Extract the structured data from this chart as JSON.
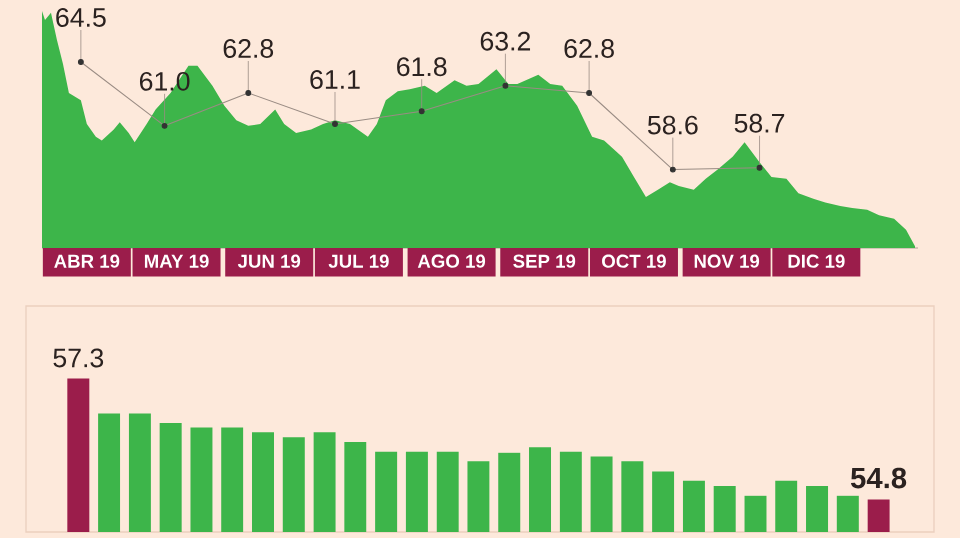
{
  "chart_data": [
    {
      "type": "area",
      "x": [
        "2019-04-01",
        "2019-04-02",
        "2019-04-04",
        "2019-04-06",
        "2019-04-08",
        "2019-04-10",
        "2019-04-14",
        "2019-04-16",
        "2019-04-19",
        "2019-04-21",
        "2019-04-25",
        "2019-04-27",
        "2019-04-30",
        "2019-05-02",
        "2019-05-06",
        "2019-05-09",
        "2019-05-14",
        "2019-05-20",
        "2019-05-23",
        "2019-05-28",
        "2019-06-01",
        "2019-06-05",
        "2019-06-09",
        "2019-06-13",
        "2019-06-18",
        "2019-06-21",
        "2019-06-25",
        "2019-06-30",
        "2019-07-04",
        "2019-07-08",
        "2019-07-13",
        "2019-07-19",
        "2019-07-22",
        "2019-07-25",
        "2019-07-29",
        "2019-08-02",
        "2019-08-07",
        "2019-08-11",
        "2019-08-17",
        "2019-08-21",
        "2019-08-25",
        "2019-08-31",
        "2019-09-04",
        "2019-09-07",
        "2019-09-14",
        "2019-09-18",
        "2019-09-22",
        "2019-09-27",
        "2019-10-02",
        "2019-10-06",
        "2019-10-12",
        "2019-10-16",
        "2019-10-20",
        "2019-10-24",
        "2019-10-28",
        "2019-10-31",
        "2019-11-05",
        "2019-11-09",
        "2019-11-13",
        "2019-11-18",
        "2019-11-22",
        "2019-11-27",
        "2019-12-01",
        "2019-12-06",
        "2019-12-10",
        "2019-12-15",
        "2019-12-19",
        "2019-12-24",
        "2019-12-28",
        "2020-01-02",
        "2020-01-06",
        "2020-01-11",
        "2020-01-15",
        "2020-01-18"
      ],
      "series": [
        {
          "color": "#3db54a",
          "values": [
            67.3,
            66.8,
            67.2,
            65.7,
            64.4,
            62.8,
            62.4,
            61.1,
            60.4,
            60.2,
            60.8,
            61.2,
            60.6,
            60.1,
            61.1,
            61.9,
            62.8,
            64.3,
            64.3,
            63.2,
            62.1,
            61.3,
            61.0,
            61.1,
            61.9,
            61.1,
            60.6,
            60.8,
            61.1,
            61.3,
            61.1,
            60.4,
            61.1,
            62.4,
            62.9,
            63.0,
            63.2,
            62.8,
            63.5,
            63.2,
            63.3,
            64.1,
            63.3,
            63.3,
            63.8,
            63.3,
            63.2,
            62.1,
            60.4,
            60.2,
            59.3,
            58.2,
            57.1,
            57.5,
            57.9,
            57.7,
            57.5,
            58.1,
            58.6,
            59.3,
            60.1,
            59.0,
            58.2,
            58.1,
            57.3,
            57.0,
            56.8,
            56.6,
            56.5,
            56.4,
            56.1,
            55.9,
            55.3,
            54.4
          ]
        },
        {
          "type": "line",
          "marker": "circle",
          "color": "#9a8c84",
          "x": [
            "2019-04-14",
            "2019-05-12",
            "2019-06-09",
            "2019-07-08",
            "2019-08-06",
            "2019-09-03",
            "2019-10-01",
            "2019-10-29",
            "2019-11-27"
          ],
          "values": [
            64.5,
            61.0,
            62.8,
            61.1,
            61.8,
            63.2,
            62.8,
            58.6,
            58.7
          ],
          "value_labels": [
            "64.5",
            "61.0",
            "62.8",
            "61.1",
            "61.8",
            "63.2",
            "62.8",
            "58.6",
            "58.7"
          ]
        }
      ],
      "xlim": [
        "2019-04-01",
        "2020-01-19"
      ],
      "ylim": [
        54.3,
        67.9
      ],
      "xticks": [
        {
          "value": "2019-04-16",
          "label": "ABR 19"
        },
        {
          "value": "2019-05-16",
          "label": "MAY 19"
        },
        {
          "value": "2019-06-16",
          "label": "JUN 19"
        },
        {
          "value": "2019-07-16",
          "label": "JUL 19"
        },
        {
          "value": "2019-08-16",
          "label": "AGO 19"
        },
        {
          "value": "2019-09-16",
          "label": "SEP 19"
        },
        {
          "value": "2019-10-16",
          "label": "OCT 19"
        },
        {
          "value": "2019-11-16",
          "label": "NOV 19"
        },
        {
          "value": "2019-12-16",
          "label": "DIC 19"
        }
      ],
      "tick_labels": "x"
    },
    {
      "type": "bar",
      "categories": [
        null,
        null,
        null,
        null,
        null,
        null,
        null,
        null,
        null,
        null,
        null,
        null,
        null,
        null,
        null,
        null,
        null,
        null,
        null,
        null,
        null,
        null,
        null,
        null,
        null,
        null,
        null
      ],
      "values": [
        57.3,
        56.58,
        56.58,
        56.38,
        56.29,
        56.29,
        56.19,
        56.09,
        56.19,
        55.99,
        55.79,
        55.79,
        55.79,
        55.59,
        55.77,
        55.88,
        55.79,
        55.69,
        55.59,
        55.38,
        55.19,
        55.08,
        54.88,
        55.19,
        55.08,
        54.88,
        54.8
      ],
      "colors": [
        "#9b1d4b",
        "#3db54a",
        "#3db54a",
        "#3db54a",
        "#3db54a",
        "#3db54a",
        "#3db54a",
        "#3db54a",
        "#3db54a",
        "#3db54a",
        "#3db54a",
        "#3db54a",
        "#3db54a",
        "#3db54a",
        "#3db54a",
        "#3db54a",
        "#3db54a",
        "#3db54a",
        "#3db54a",
        "#3db54a",
        "#3db54a",
        "#3db54a",
        "#3db54a",
        "#3db54a",
        "#3db54a",
        "#3db54a",
        "#9b1d4b"
      ],
      "value_labels": [
        "57.3",
        null,
        null,
        null,
        null,
        null,
        null,
        null,
        null,
        null,
        null,
        null,
        null,
        null,
        null,
        null,
        null,
        null,
        null,
        null,
        null,
        null,
        null,
        null,
        null,
        null,
        "54.8"
      ],
      "ylim": [
        54.13,
        58.8
      ],
      "tick_labels": false
    }
  ]
}
